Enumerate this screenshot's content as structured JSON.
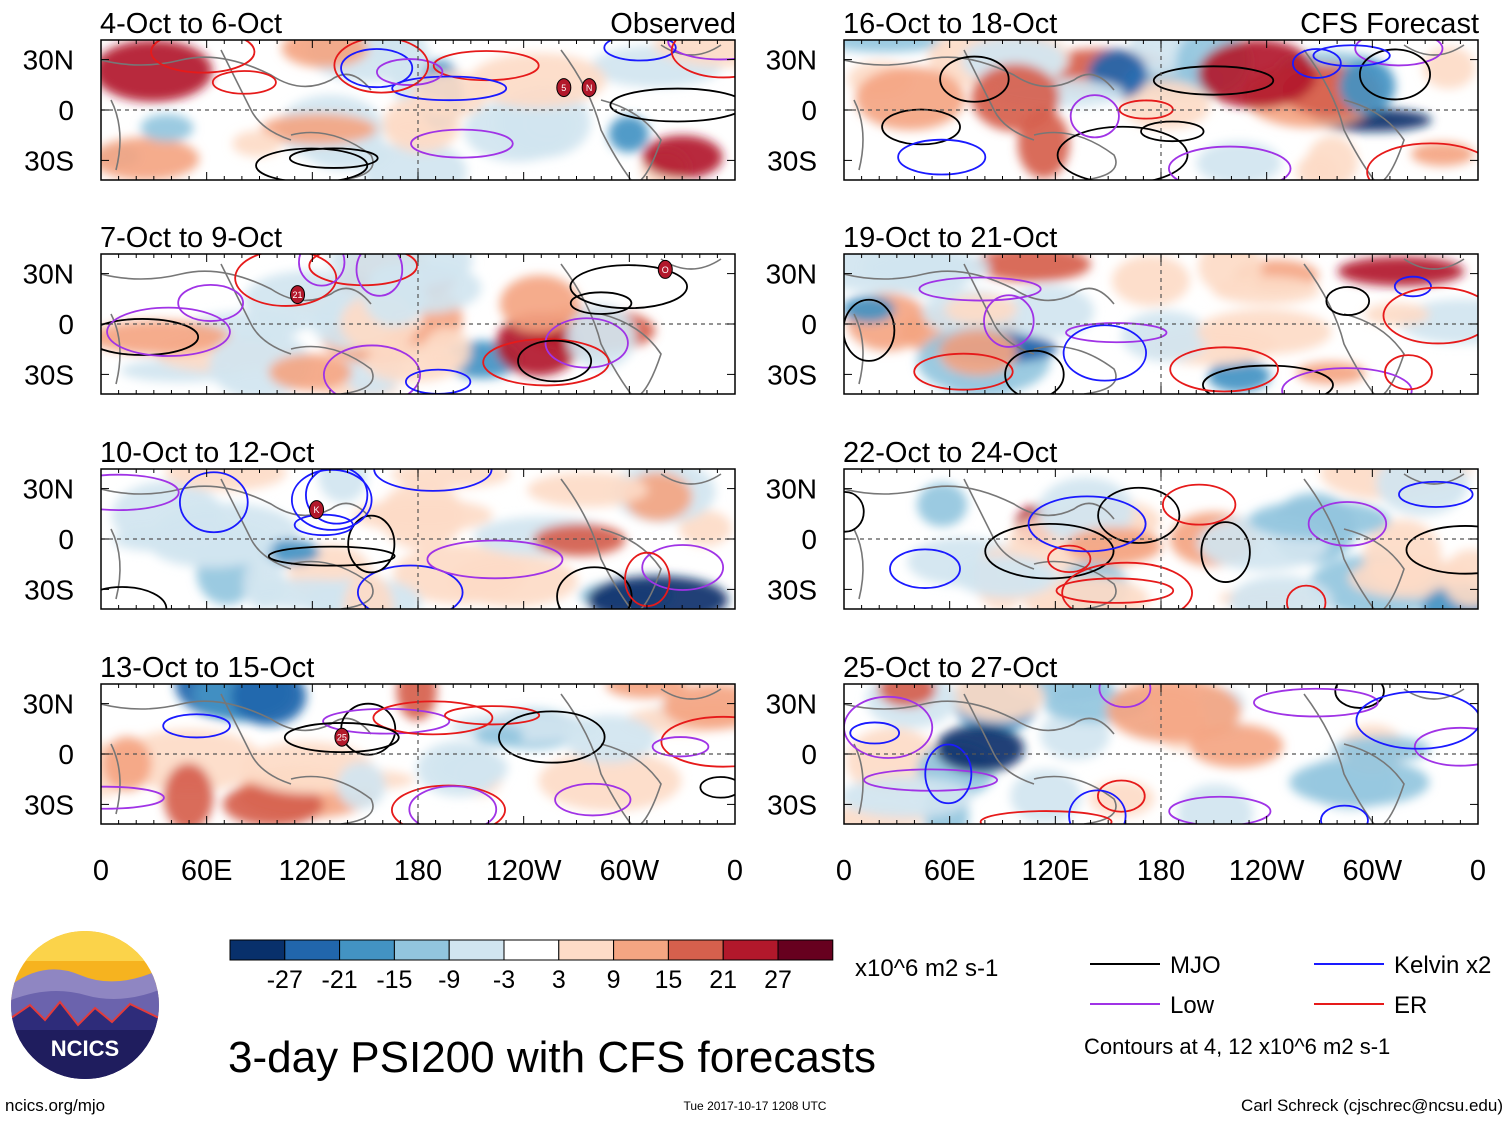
{
  "panels": [
    {
      "period": "4-Oct to 6-Oct",
      "tag": "Observed"
    },
    {
      "period": "7-Oct to 9-Oct",
      "tag": ""
    },
    {
      "period": "10-Oct to 12-Oct",
      "tag": ""
    },
    {
      "period": "13-Oct to 15-Oct",
      "tag": ""
    },
    {
      "period": "16-Oct to 18-Oct",
      "tag": "CFS Forecast"
    },
    {
      "period": "19-Oct to 21-Oct",
      "tag": ""
    },
    {
      "period": "22-Oct to 24-Oct",
      "tag": ""
    },
    {
      "period": "25-Oct to 27-Oct",
      "tag": ""
    }
  ],
  "lat_labels": [
    "30N",
    "0",
    "30S"
  ],
  "lon_labels": [
    "0",
    "60E",
    "120E",
    "180",
    "120W",
    "60W",
    "0"
  ],
  "colorbar": {
    "ticks": [
      "-27",
      "-21",
      "-15",
      "-9",
      "-3",
      "3",
      "9",
      "15",
      "21",
      "27"
    ],
    "units": "x10^6 m2 s-1",
    "colors": [
      "#08306b",
      "#2166ac",
      "#4393c3",
      "#92c5de",
      "#d1e5f0",
      "#ffffff",
      "#fddbc7",
      "#f4a582",
      "#d6604d",
      "#b2182b",
      "#67001f"
    ]
  },
  "legend": {
    "items": [
      {
        "label": "MJO",
        "color": "#000000"
      },
      {
        "label": "Kelvin x2",
        "color": "#1a1aff"
      },
      {
        "label": "Low",
        "color": "#a033e6"
      },
      {
        "label": "ER",
        "color": "#e61a1a"
      }
    ],
    "note": "Contours at 4, 12 x10^6 m2 s-1"
  },
  "logo_text": "NCICS",
  "main_title": "3-day PSI200 with CFS forecasts",
  "footer": {
    "left": "ncics.org/mjo",
    "center": "Tue 2017-10-17 1208 UTC",
    "right": "Carl Schreck (cjschrec@ncsu.edu)"
  },
  "storm_markers": [
    {
      "panel": 0,
      "label": "5"
    },
    {
      "panel": 0,
      "label": "N"
    },
    {
      "panel": 1,
      "label": "21"
    },
    {
      "panel": 1,
      "label": "O"
    },
    {
      "panel": 2,
      "label": "K"
    },
    {
      "panel": 3,
      "label": "25"
    }
  ]
}
